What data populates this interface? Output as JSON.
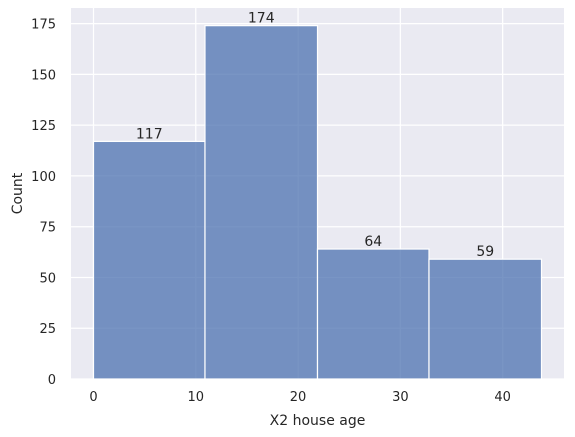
{
  "chart_data": {
    "type": "bar",
    "bins": [
      {
        "x0": 0,
        "x1": 10.9,
        "count": 117,
        "label": "117"
      },
      {
        "x0": 10.9,
        "x1": 21.9,
        "count": 174,
        "label": "174"
      },
      {
        "x0": 21.9,
        "x1": 32.8,
        "count": 64,
        "label": "64"
      },
      {
        "x0": 32.8,
        "x1": 43.8,
        "count": 59,
        "label": "59"
      }
    ],
    "title": "",
    "xlabel": "X2 house age",
    "ylabel": "Count",
    "xlim": [
      -2.2,
      46.0
    ],
    "ylim": [
      0,
      182.7
    ],
    "xticks": [
      0,
      10,
      20,
      30,
      40
    ],
    "yticks": [
      0,
      25,
      50,
      75,
      100,
      125,
      150,
      175
    ],
    "grid": true,
    "legend": "none",
    "colors": {
      "plot_background": "#EAEAF2",
      "bar_fill": "#4C72B0",
      "grid": "#FFFFFF",
      "text": "#262626"
    }
  }
}
